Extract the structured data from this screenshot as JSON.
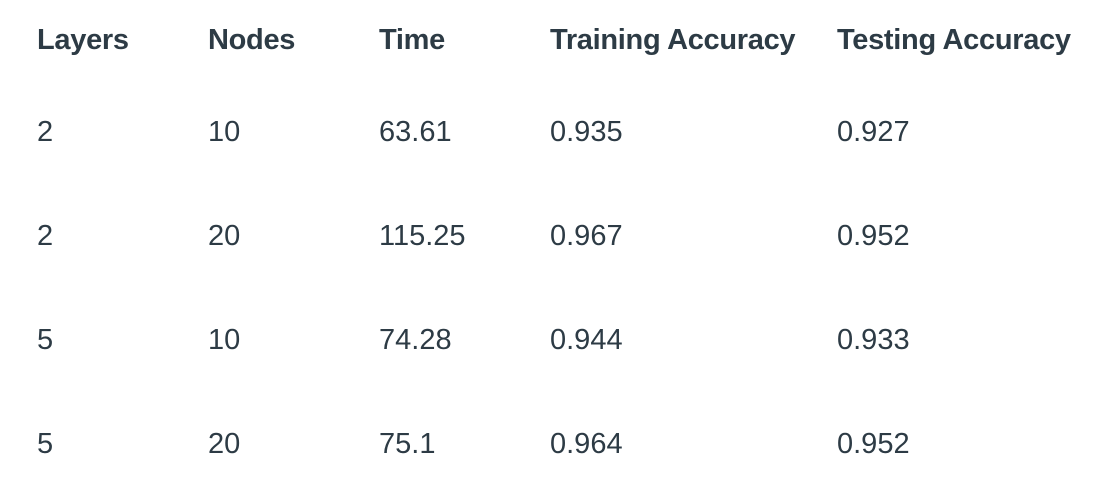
{
  "table": {
    "columns": [
      "Layers",
      "Nodes",
      "Time",
      "Training Accuracy",
      "Testing Accuracy"
    ],
    "rows": [
      [
        "2",
        "10",
        "63.61",
        "0.935",
        "0.927"
      ],
      [
        "2",
        "20",
        "115.25",
        "0.967",
        "0.952"
      ],
      [
        "5",
        "10",
        "74.28",
        "0.944",
        "0.933"
      ],
      [
        "5",
        "20",
        "75.1",
        "0.964",
        "0.952"
      ]
    ]
  }
}
